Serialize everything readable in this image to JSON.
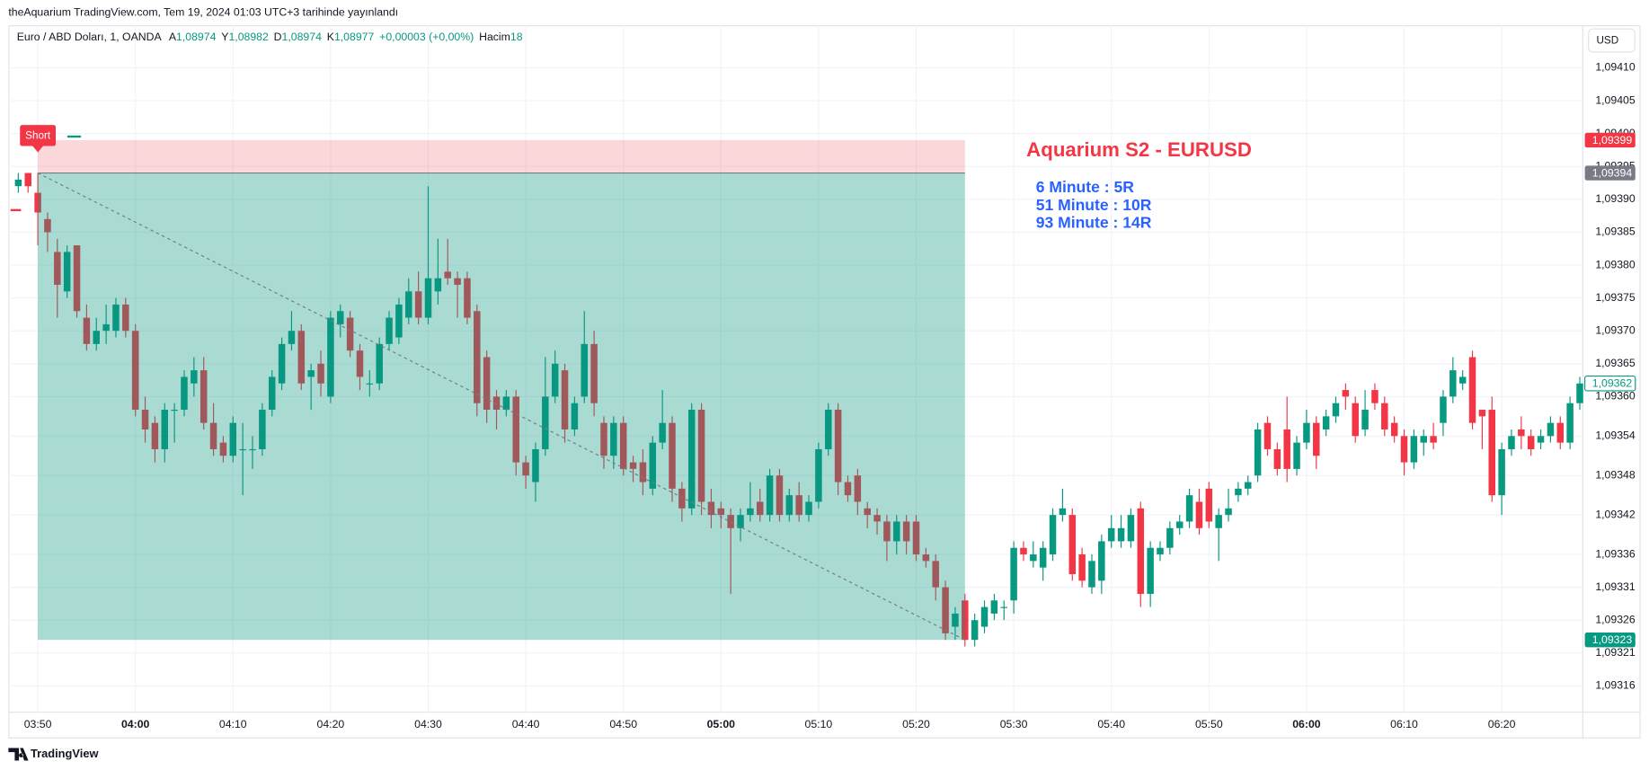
{
  "header": {
    "published": "theAquarium TradingView.com, Tem 19, 2024 01:03 UTC+3 tarihinde yayınlandı"
  },
  "footer": {
    "brand": "TradingView"
  },
  "chart_data": {
    "type": "candlestick",
    "symbol": "Euro / ABD Doları, 1, OANDA",
    "legend_items": [
      {
        "key": "A",
        "value": "1,08974"
      },
      {
        "key": "Y",
        "value": "1,08982"
      },
      {
        "key": "D",
        "value": "1,08974"
      },
      {
        "key": "K",
        "value": "1,08977"
      }
    ],
    "change": "+0,00003 (+0,00%)",
    "volume": {
      "key": "Hacim",
      "value": "18"
    },
    "currency": "USD",
    "up_color": "#089981",
    "down_color": "#f23645",
    "grid": true,
    "categories": [
      null,
      null,
      "03:50",
      null,
      null,
      null,
      null,
      null,
      null,
      null,
      null,
      null,
      "04:00",
      null,
      null,
      null,
      null,
      null,
      null,
      null,
      null,
      null,
      "04:10",
      null,
      null,
      null,
      null,
      null,
      null,
      null,
      null,
      null,
      "04:20",
      null,
      null,
      null,
      null,
      null,
      null,
      null,
      null,
      null,
      "04:30",
      null,
      null,
      null,
      null,
      null,
      null,
      null,
      null,
      null,
      "04:40",
      null,
      null,
      null,
      null,
      null,
      null,
      null,
      null,
      null,
      "04:50",
      null,
      null,
      null,
      null,
      null,
      null,
      null,
      null,
      null,
      "05:00",
      null,
      null,
      null,
      null,
      null,
      null,
      null,
      null,
      null,
      "05:10",
      null,
      null,
      null,
      null,
      null,
      null,
      null,
      null,
      null,
      "05:20",
      null,
      null,
      null,
      null,
      null,
      null,
      null,
      null,
      null,
      "05:30",
      null,
      null,
      null,
      null,
      null,
      null,
      null,
      null,
      null,
      "05:40",
      null,
      null,
      null,
      null,
      null,
      null,
      null,
      null,
      null,
      "05:50",
      null,
      null,
      null,
      null,
      null,
      null,
      null,
      null,
      null,
      "06:00",
      null,
      null,
      null,
      null,
      null,
      null,
      null,
      null,
      null,
      "06:10",
      null,
      null,
      null,
      null,
      null,
      null,
      null,
      null,
      null,
      "06:20",
      null,
      null,
      null,
      null,
      null,
      null,
      null,
      null
    ],
    "open": [
      1.09392,
      1.09394,
      1.09391,
      1.09387,
      1.09382,
      1.09376,
      1.09383,
      1.09372,
      1.09368,
      1.0937,
      1.0937,
      1.09374,
      1.0937,
      1.09358,
      1.09356,
      1.09352,
      1.09358,
      1.09358,
      1.09362,
      1.09364,
      1.09356,
      1.09353,
      1.09351,
      1.09352,
      1.09352,
      1.09352,
      1.09358,
      1.09362,
      1.09368,
      1.0937,
      1.09363,
      1.09365,
      1.0936,
      1.09371,
      1.09372,
      1.09367,
      1.09362,
      1.09362,
      1.09368,
      1.09369,
      1.09372,
      1.09376,
      1.09372,
      1.09376,
      1.09379,
      1.09378,
      1.09378,
      1.09373,
      1.09366,
      1.0936,
      1.09358,
      1.0936,
      1.0935,
      1.09347,
      1.09352,
      1.0936,
      1.09364,
      1.09355,
      1.0936,
      1.09368,
      1.09356,
      1.09351,
      1.09356,
      1.0935,
      1.0935,
      1.09346,
      1.09353,
      1.09356,
      1.09346,
      1.09343,
      1.09358,
      1.09344,
      1.09343,
      1.09342,
      1.0934,
      1.09342,
      1.09344,
      1.09342,
      1.09348,
      1.09342,
      1.09345,
      1.09342,
      1.09344,
      1.09352,
      1.09358,
      1.09347,
      1.09348,
      1.09343,
      1.09342,
      1.09341,
      1.09338,
      1.09341,
      1.09341,
      1.09336,
      1.09335,
      1.09331,
      1.09325,
      1.09329,
      1.09323,
      1.09325,
      1.09327,
      1.09328,
      1.09329,
      1.09337,
      1.09335,
      1.09334,
      1.09336,
      1.09342,
      1.09342,
      1.09336,
      1.09331,
      1.09332,
      1.09338,
      1.09338,
      1.09338,
      1.09343,
      1.0933,
      1.09336,
      1.09337,
      1.0934,
      1.09341,
      1.09344,
      1.09346,
      1.0934,
      1.09342,
      1.09345,
      1.09346,
      1.09348,
      1.09356,
      1.09352,
      1.09355,
      1.09349,
      1.09353,
      1.09356,
      1.09355,
      1.09357,
      1.09361,
      1.09359,
      1.09355,
      1.09361,
      1.09359,
      1.09356,
      1.09354,
      1.0935,
      1.09353,
      1.09354,
      1.09356,
      1.0936,
      1.09362,
      1.09366,
      1.09358,
      1.09358,
      1.09345,
      1.09352,
      1.09355,
      1.09354,
      1.09353,
      1.09354,
      1.09356,
      1.09353,
      1.09359
    ],
    "high": [
      1.09394,
      1.09394,
      1.09394,
      1.09388,
      1.09384,
      1.09383,
      1.09383,
      1.09374,
      1.09372,
      1.09374,
      1.09375,
      1.09375,
      1.09371,
      1.0936,
      1.09357,
      1.09359,
      1.09359,
      1.09364,
      1.09366,
      1.09366,
      1.09359,
      1.09354,
      1.09357,
      1.09356,
      1.09354,
      1.09359,
      1.09364,
      1.09369,
      1.09373,
      1.09371,
      1.09365,
      1.09367,
      1.09373,
      1.09374,
      1.09373,
      1.09368,
      1.09364,
      1.09369,
      1.09373,
      1.09375,
      1.09378,
      1.09379,
      1.09392,
      1.09384,
      1.09384,
      1.09379,
      1.09379,
      1.09374,
      1.09367,
      1.09361,
      1.09361,
      1.09361,
      1.09351,
      1.09353,
      1.09366,
      1.09367,
      1.09365,
      1.0936,
      1.09373,
      1.0937,
      1.09357,
      1.09357,
      1.09357,
      1.09351,
      1.09352,
      1.09354,
      1.09361,
      1.09357,
      1.09347,
      1.09359,
      1.09359,
      1.09346,
      1.09344,
      1.09343,
      1.09343,
      1.09347,
      1.09346,
      1.09349,
      1.09349,
      1.09346,
      1.09347,
      1.09345,
      1.09353,
      1.09359,
      1.09359,
      1.09348,
      1.09349,
      1.09344,
      1.09343,
      1.09342,
      1.09342,
      1.09342,
      1.09342,
      1.09337,
      1.09336,
      1.09332,
      1.09328,
      1.0933,
      1.09327,
      1.09329,
      1.0933,
      1.09329,
      1.09338,
      1.09338,
      1.09338,
      1.09338,
      1.09343,
      1.09346,
      1.09343,
      1.09337,
      1.09336,
      1.09339,
      1.09342,
      1.09342,
      1.09343,
      1.09344,
      1.09338,
      1.09338,
      1.09341,
      1.09342,
      1.09346,
      1.09346,
      1.09347,
      1.09343,
      1.09346,
      1.09347,
      1.09348,
      1.09356,
      1.09357,
      1.09353,
      1.0936,
      1.09354,
      1.09358,
      1.09357,
      1.09358,
      1.0936,
      1.09362,
      1.0936,
      1.09361,
      1.09362,
      1.0936,
      1.09357,
      1.09355,
      1.09355,
      1.09355,
      1.09356,
      1.09361,
      1.09366,
      1.09364,
      1.09367,
      1.09358,
      1.0936,
      1.09353,
      1.09355,
      1.09357,
      1.09355,
      1.09355,
      1.09357,
      1.09357,
      1.0936,
      1.09363
    ],
    "low": [
      1.09391,
      1.09391,
      1.09383,
      1.09382,
      1.09372,
      1.09375,
      1.09372,
      1.09367,
      1.09367,
      1.09368,
      1.09369,
      1.09369,
      1.09357,
      1.09353,
      1.0935,
      1.0935,
      1.09353,
      1.09357,
      1.0936,
      1.09355,
      1.09351,
      1.0935,
      1.0935,
      1.09345,
      1.09349,
      1.09351,
      1.09357,
      1.09361,
      1.09367,
      1.09361,
      1.09358,
      1.0936,
      1.09359,
      1.09369,
      1.09366,
      1.09361,
      1.0936,
      1.09361,
      1.09367,
      1.09368,
      1.09371,
      1.09371,
      1.09371,
      1.09374,
      1.09377,
      1.09372,
      1.09371,
      1.09357,
      1.09356,
      1.09355,
      1.09357,
      1.09348,
      1.09346,
      1.09344,
      1.09351,
      1.09359,
      1.09353,
      1.09354,
      1.09359,
      1.09357,
      1.09349,
      1.09349,
      1.09348,
      1.09347,
      1.09345,
      1.09345,
      1.09352,
      1.09344,
      1.09341,
      1.09342,
      1.09342,
      1.0934,
      1.0934,
      1.0933,
      1.09338,
      1.09341,
      1.09341,
      1.09341,
      1.09341,
      1.09341,
      1.09341,
      1.09341,
      1.09343,
      1.09351,
      1.09345,
      1.09344,
      1.09342,
      1.0934,
      1.09339,
      1.09335,
      1.09336,
      1.09336,
      1.09335,
      1.09334,
      1.09329,
      1.09323,
      1.09323,
      1.09322,
      1.09322,
      1.09324,
      1.09326,
      1.09326,
      1.09327,
      1.09335,
      1.09334,
      1.09332,
      1.09335,
      1.09341,
      1.09332,
      1.09331,
      1.0933,
      1.0933,
      1.09337,
      1.09337,
      1.09337,
      1.09328,
      1.09328,
      1.09335,
      1.09336,
      1.09339,
      1.0934,
      1.09339,
      1.0934,
      1.09335,
      1.09341,
      1.09344,
      1.09345,
      1.09347,
      1.09351,
      1.09348,
      1.09347,
      1.09348,
      1.09352,
      1.09349,
      1.09354,
      1.09356,
      1.09358,
      1.09353,
      1.09354,
      1.09358,
      1.09354,
      1.09353,
      1.09348,
      1.09349,
      1.09351,
      1.09352,
      1.09354,
      1.09359,
      1.09361,
      1.09355,
      1.09352,
      1.09344,
      1.09342,
      1.09351,
      1.09352,
      1.09351,
      1.09352,
      1.09353,
      1.09352,
      1.09352,
      1.09358
    ],
    "close": [
      1.09393,
      1.09392,
      1.09388,
      1.09385,
      1.09377,
      1.09382,
      1.09373,
      1.09368,
      1.0937,
      1.09371,
      1.09374,
      1.0937,
      1.09358,
      1.09355,
      1.09352,
      1.09358,
      1.09358,
      1.09363,
      1.09364,
      1.09356,
      1.09352,
      1.09351,
      1.09356,
      1.09352,
      1.09352,
      1.09358,
      1.09363,
      1.09368,
      1.0937,
      1.09362,
      1.09364,
      1.09362,
      1.09372,
      1.09373,
      1.09367,
      1.09363,
      1.09362,
      1.09368,
      1.09372,
      1.09374,
      1.09376,
      1.09372,
      1.09378,
      1.09378,
      1.09378,
      1.09377,
      1.09372,
      1.09359,
      1.09358,
      1.09358,
      1.0936,
      1.0935,
      1.09348,
      1.09352,
      1.0936,
      1.09365,
      1.09355,
      1.09359,
      1.09368,
      1.09359,
      1.09351,
      1.09356,
      1.09349,
      1.09349,
      1.09347,
      1.09353,
      1.09356,
      1.09346,
      1.09343,
      1.09358,
      1.09344,
      1.09342,
      1.09342,
      1.0934,
      1.09342,
      1.09343,
      1.09342,
      1.09348,
      1.09342,
      1.09345,
      1.09342,
      1.09344,
      1.09352,
      1.09358,
      1.09347,
      1.09345,
      1.09344,
      1.09342,
      1.09341,
      1.09338,
      1.09341,
      1.09338,
      1.09336,
      1.09335,
      1.09331,
      1.09324,
      1.09327,
      1.09323,
      1.09326,
      1.09328,
      1.09329,
      1.09328,
      1.09337,
      1.09336,
      1.09336,
      1.09337,
      1.09342,
      1.09343,
      1.09333,
      1.09332,
      1.09335,
      1.09338,
      1.0934,
      1.0934,
      1.09342,
      1.0933,
      1.09337,
      1.09337,
      1.0934,
      1.09341,
      1.09345,
      1.0934,
      1.09341,
      1.09342,
      1.09343,
      1.09346,
      1.09347,
      1.09355,
      1.09352,
      1.09349,
      1.09349,
      1.09353,
      1.09356,
      1.09351,
      1.09357,
      1.09359,
      1.0936,
      1.09354,
      1.09358,
      1.09359,
      1.09355,
      1.09354,
      1.0935,
      1.09354,
      1.09354,
      1.09353,
      1.0936,
      1.09364,
      1.09363,
      1.09356,
      1.09357,
      1.09345,
      1.09352,
      1.09354,
      1.09354,
      1.09352,
      1.09354,
      1.09356,
      1.09353,
      1.09359,
      1.09362
    ],
    "ylim": [
      1.09312,
      1.09416
    ],
    "yticks": [
      {
        "value": 1.09316,
        "label": "1,09316"
      },
      {
        "value": 1.09321,
        "label": "1,09321"
      },
      {
        "value": 1.09326,
        "label": "1,09326"
      },
      {
        "value": 1.09331,
        "label": "1,09331"
      },
      {
        "value": 1.09336,
        "label": "1,09336"
      },
      {
        "value": 1.09342,
        "label": "1,09342"
      },
      {
        "value": 1.09348,
        "label": "1,09348"
      },
      {
        "value": 1.09354,
        "label": "1,09354"
      },
      {
        "value": 1.0936,
        "label": "1,09360"
      },
      {
        "value": 1.09365,
        "label": "1,09365"
      },
      {
        "value": 1.0937,
        "label": "1,09370"
      },
      {
        "value": 1.09375,
        "label": "1,09375"
      },
      {
        "value": 1.0938,
        "label": "1,09380"
      },
      {
        "value": 1.09385,
        "label": "1,09385"
      },
      {
        "value": 1.0939,
        "label": "1,09390"
      },
      {
        "value": 1.09395,
        "label": "1,09395"
      },
      {
        "value": 1.094,
        "label": "1,09400"
      },
      {
        "value": 1.09405,
        "label": "1,09405"
      },
      {
        "value": 1.0941,
        "label": "1,09410"
      }
    ],
    "position": {
      "label": "Short",
      "stop": {
        "value": 1.09399,
        "label": "1,09399"
      },
      "entry": {
        "value": 1.09394,
        "label": "1,09394"
      },
      "target": {
        "value": 1.09323,
        "label": "1,09323"
      }
    },
    "last_price": {
      "value": 1.09362,
      "label": "1,09362"
    },
    "annotation": {
      "title": "Aquarium S2 - EURUSD",
      "lines": [
        "6 Minute : 5R",
        "51 Minute : 10R",
        "93 Minute : 14R"
      ]
    }
  }
}
